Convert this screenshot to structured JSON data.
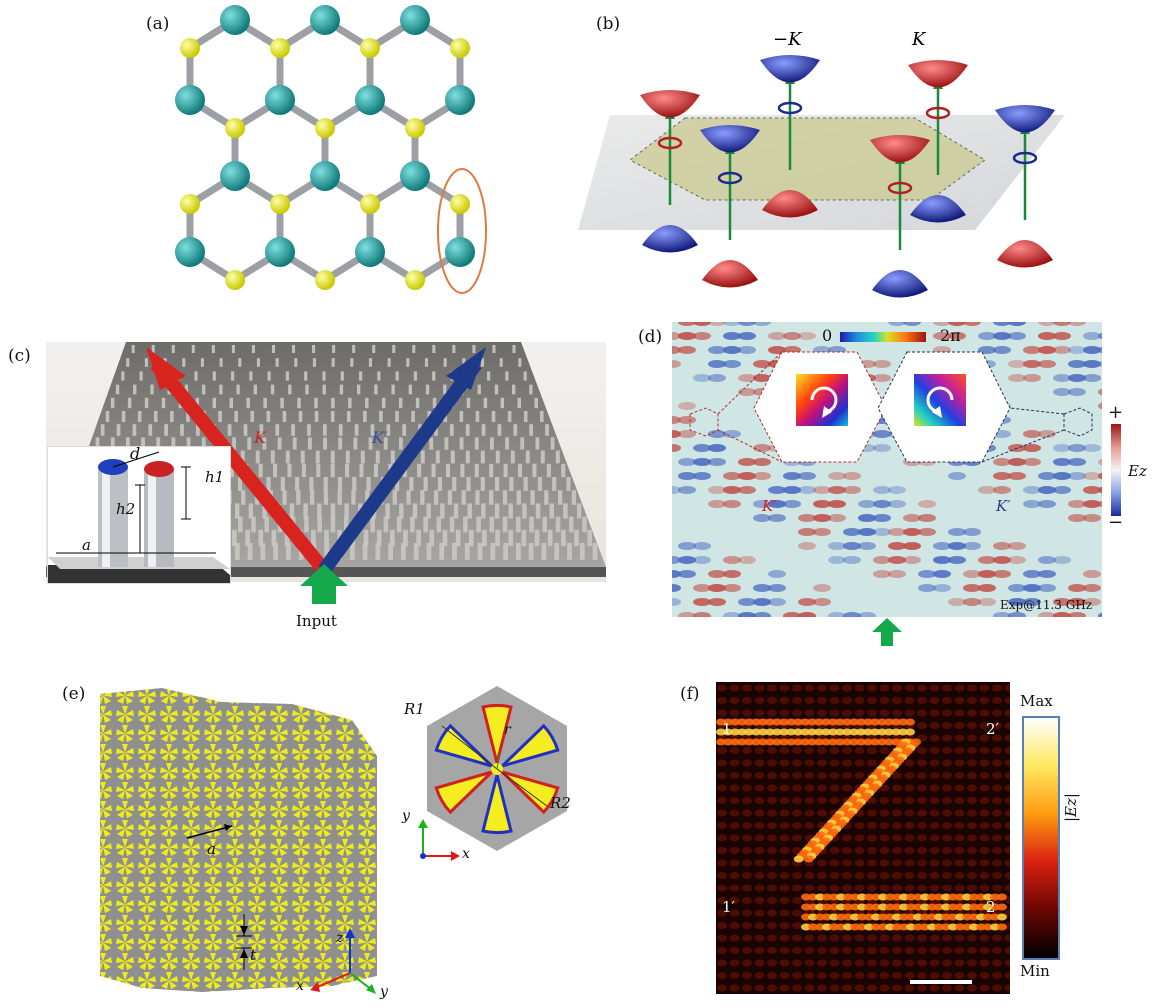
{
  "labels": {
    "a": "(a)",
    "b": "(b)",
    "c": "(c)",
    "d": "(d)",
    "e": "(e)",
    "f": "(f)"
  },
  "panel_b": {
    "minus_k": "−K",
    "k": "K"
  },
  "panel_c": {
    "k_red": "K",
    "k_blue": "K′",
    "d": "d",
    "h1": "h1",
    "h2": "h2",
    "a": "a",
    "input": "Input"
  },
  "panel_d": {
    "scale_min": "0",
    "scale_max": "2π",
    "plus": "+",
    "minus": "−",
    "ez": "Ez",
    "k_left": "K′",
    "k_right": "K′",
    "exp": "Exp@11.3 GHz"
  },
  "panel_e": {
    "R1": "R1",
    "R2": "R2",
    "r": "r",
    "a": "a",
    "t": "t",
    "x": "x",
    "y": "y",
    "z": "z"
  },
  "panel_f": {
    "p1": "1",
    "p1p": "1′",
    "p2": "2",
    "p2p": "2′",
    "max": "Max",
    "min": "Min",
    "ez": "|Ez|"
  },
  "colors": {
    "teal": "#1e9a9a",
    "yellow": "#ecec1a",
    "red": "#c0282c",
    "blue": "#1f2f8e",
    "green": "#12a94b",
    "rod": "#9ea2a6",
    "hot": "#ff7a14"
  }
}
